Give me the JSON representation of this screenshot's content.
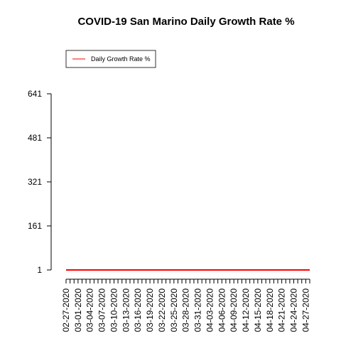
{
  "chart_data": {
    "type": "line",
    "title": "COVID-19 San Marino Daily Growth Rate %",
    "xlabel": "",
    "ylabel": "",
    "legend": {
      "position": "top-left",
      "entries": [
        {
          "label": "Daily Growth Rate %",
          "color": "#ff0000"
        }
      ]
    },
    "y_ticks": [
      1,
      161,
      321,
      481,
      641
    ],
    "ylim": [
      1,
      641
    ],
    "x_tick_labels": [
      "02-27-2020",
      "03-01-2020",
      "03-04-2020",
      "03-07-2020",
      "03-10-2020",
      "03-13-2020",
      "03-16-2020",
      "03-19-2020",
      "03-22-2020",
      "03-25-2020",
      "03-28-2020",
      "03-31-2020",
      "04-03-2020",
      "04-06-2020",
      "04-09-2020",
      "04-12-2020",
      "04-15-2020",
      "04-18-2020",
      "04-21-2020",
      "04-24-2020",
      "04-27-2020"
    ],
    "x_start": "02-27-2020",
    "x_end": "04-28-2020",
    "series": [
      {
        "name": "Daily Growth Rate %",
        "color": "#ff0000",
        "x": [
          "02-27-2020",
          "04-28-2020"
        ],
        "values": [
          1,
          1
        ]
      }
    ]
  }
}
